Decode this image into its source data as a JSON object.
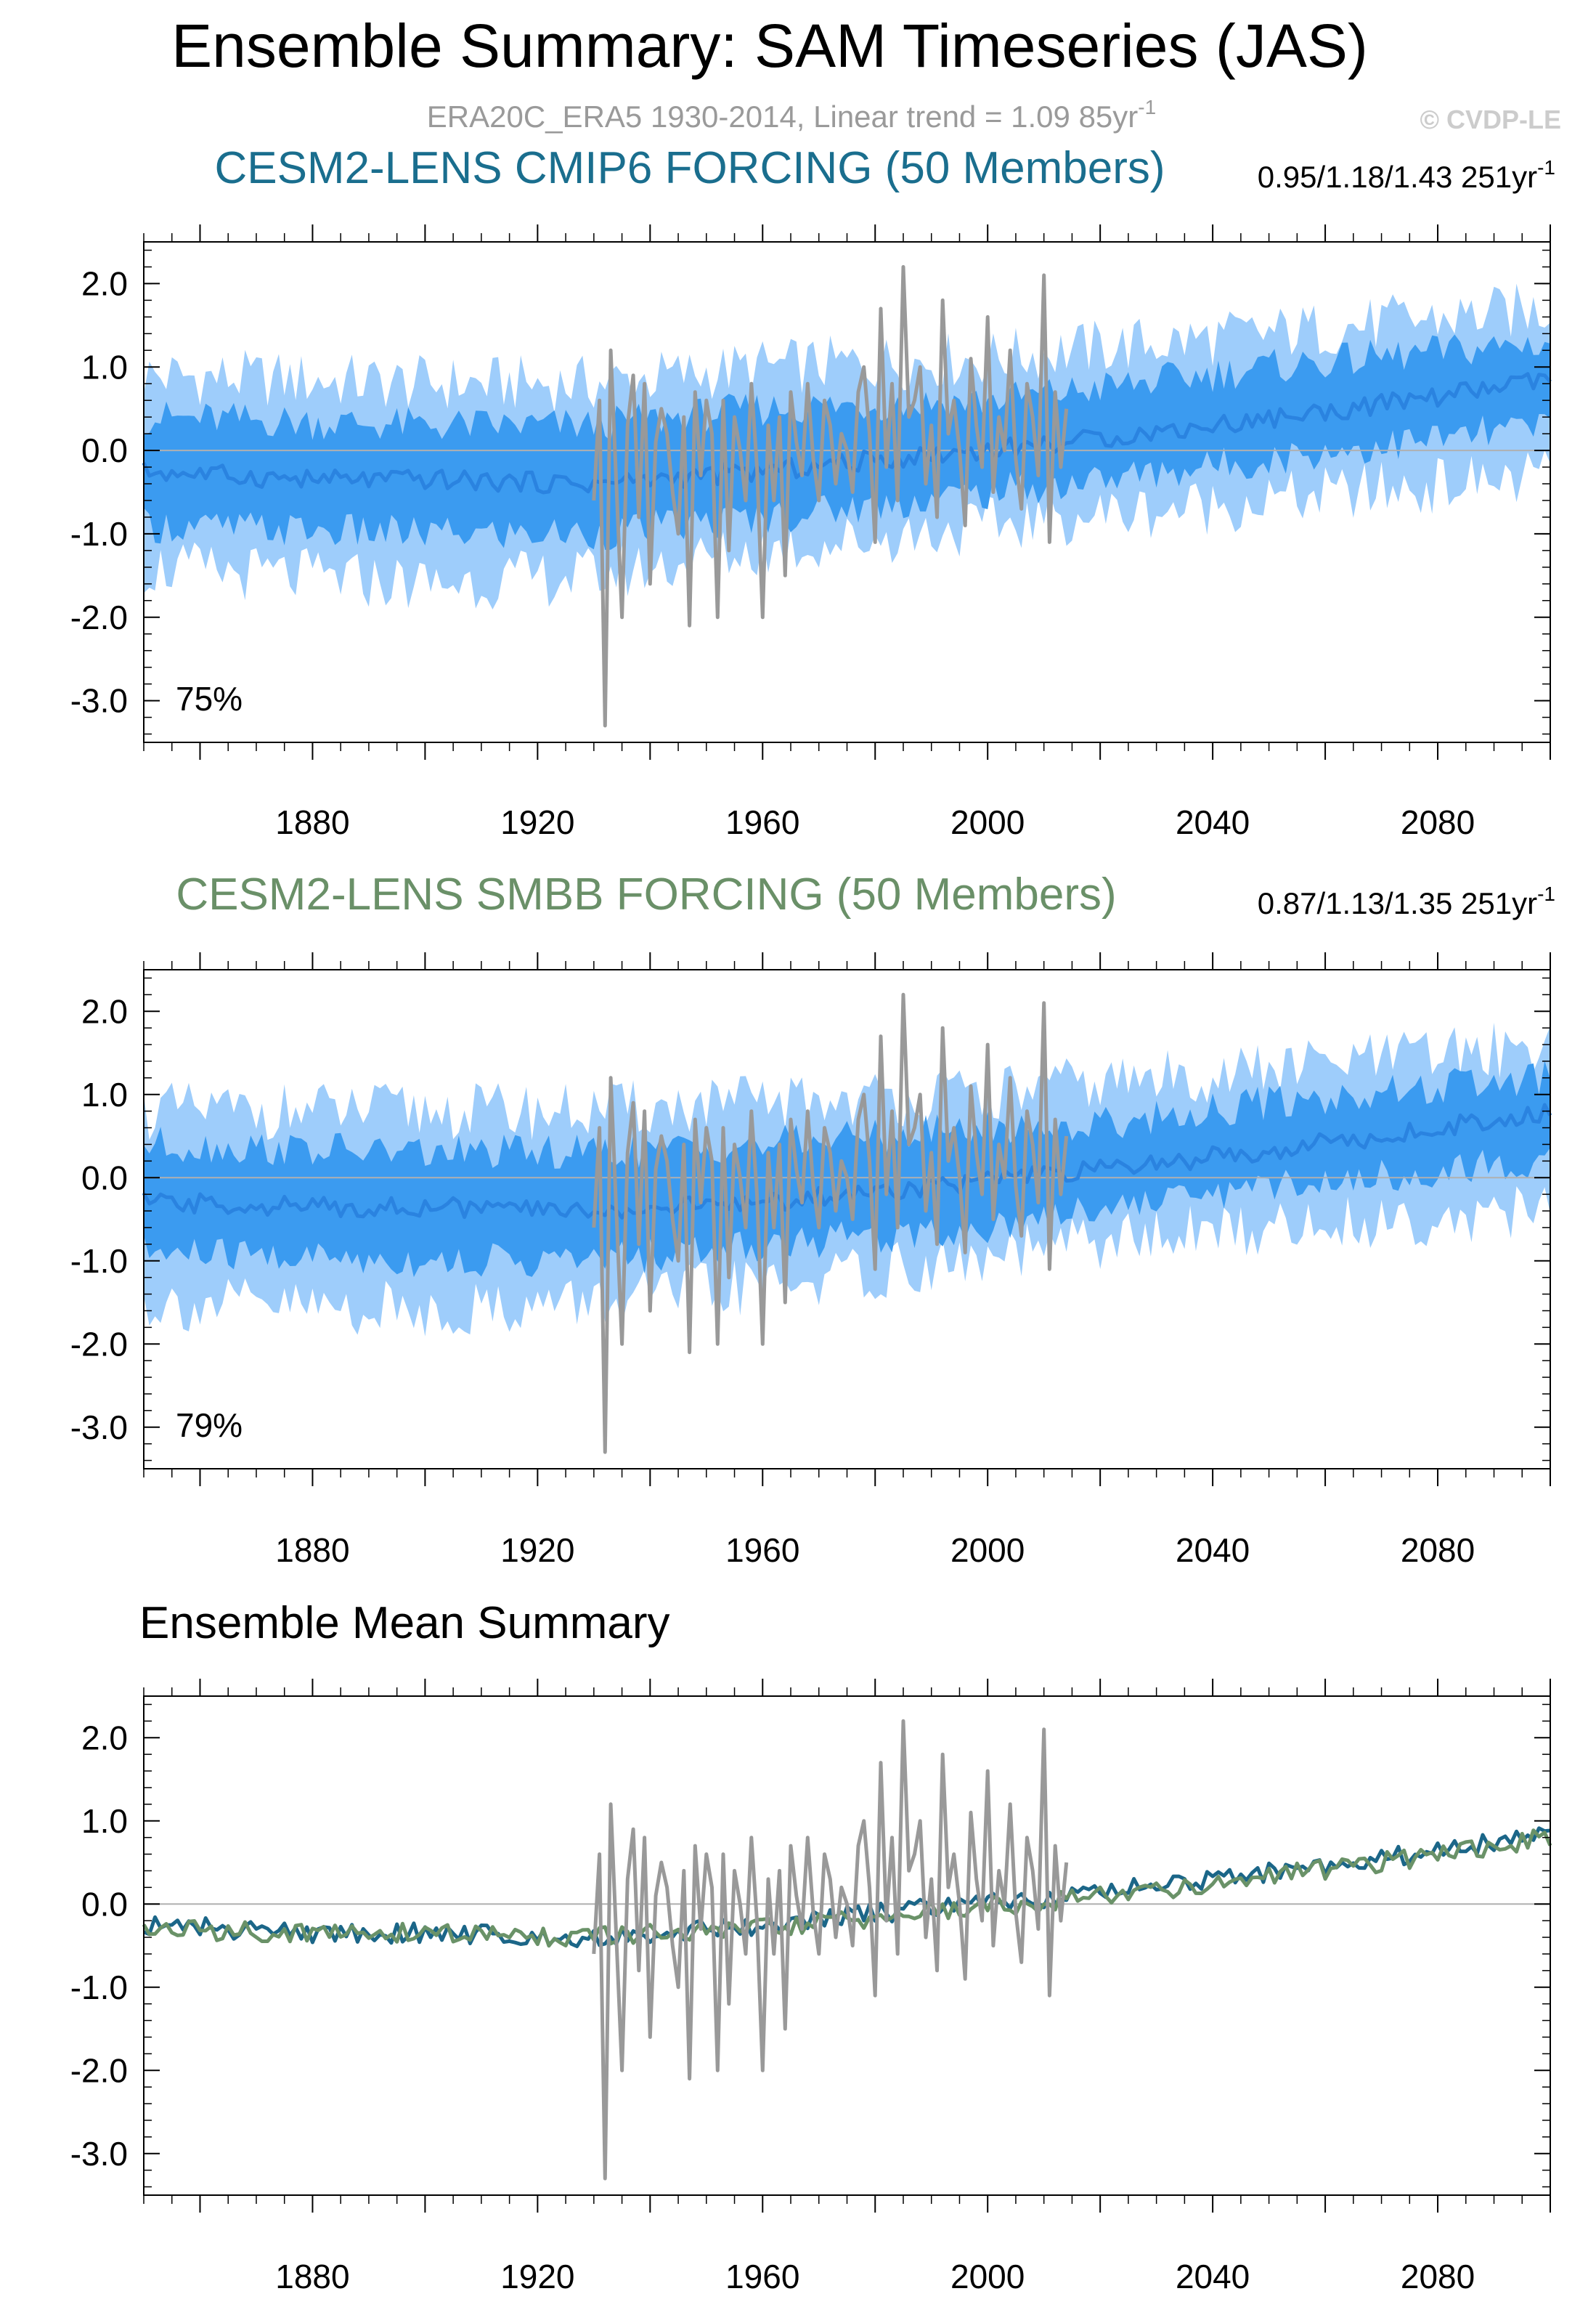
{
  "title": "Ensemble Summary: SAM Timeseries (JAS)",
  "subtitle": "ERA20C_ERA5 1930-2014, Linear trend = 1.09 85yr",
  "subtitle_sup": "-1",
  "copyright": "© CVDP-LE",
  "colors": {
    "outer_band": "#9ecdfb",
    "inner_band": "#3b9bf0",
    "ensemble_mean_line": "#2a83e0",
    "observations": "#999999",
    "cmip6_title": "#1a6e8e",
    "smbb_title": "#6a9068",
    "cmip6_mean_line": "#1b6688",
    "smbb_mean_line": "#6a9268",
    "zero_line": "#b0b0b0"
  },
  "chart_data": [
    {
      "type": "line",
      "panel_title": "CESM2-LENS CMIP6 FORCING (50 Members)",
      "trend_text": "0.95/1.18/1.43 251yr",
      "trend_sup": "-1",
      "annotation": "75%",
      "x_range": [
        1850,
        2100
      ],
      "ylim": [
        -3.5,
        2.5
      ],
      "yticks": [
        "2.0",
        "1.0",
        "0.0",
        "-1.0",
        "-2.0",
        "-3.0"
      ],
      "xticks": [
        "1880",
        "1920",
        "1960",
        "2000",
        "2040",
        "2080"
      ],
      "series": [
        {
          "role": "band",
          "level": "outer",
          "lower_anchors": [
            [
              1850,
              -1.4
            ],
            [
              1900,
              -1.6
            ],
            [
              1930,
              -1.5
            ],
            [
              1960,
              -1.2
            ],
            [
              2000,
              -0.9
            ],
            [
              2014,
              -0.8
            ],
            [
              2050,
              -0.6
            ],
            [
              2100,
              -0.3
            ]
          ],
          "upper_anchors": [
            [
              1850,
              0.9
            ],
            [
              1900,
              0.8
            ],
            [
              1930,
              0.8
            ],
            [
              1960,
              1.0
            ],
            [
              2000,
              1.1
            ],
            [
              2014,
              1.2
            ],
            [
              2050,
              1.4
            ],
            [
              2100,
              1.7
            ]
          ]
        },
        {
          "role": "band",
          "level": "inner",
          "lower_anchors": [
            [
              1850,
              -0.9
            ],
            [
              1900,
              -1.0
            ],
            [
              1930,
              -1.0
            ],
            [
              1960,
              -0.8
            ],
            [
              2000,
              -0.5
            ],
            [
              2014,
              -0.4
            ],
            [
              2050,
              -0.1
            ],
            [
              2100,
              0.3
            ]
          ],
          "upper_anchors": [
            [
              1850,
              0.4
            ],
            [
              1900,
              0.3
            ],
            [
              1930,
              0.3
            ],
            [
              1960,
              0.5
            ],
            [
              2000,
              0.6
            ],
            [
              2014,
              0.7
            ],
            [
              2050,
              1.0
            ],
            [
              2100,
              1.3
            ]
          ]
        },
        {
          "role": "ensemble_mean",
          "anchors": [
            [
              1850,
              -0.25
            ],
            [
              1880,
              -0.35
            ],
            [
              1900,
              -0.35
            ],
            [
              1930,
              -0.4
            ],
            [
              1960,
              -0.25
            ],
            [
              1990,
              -0.05
            ],
            [
              2014,
              0.1
            ],
            [
              2040,
              0.3
            ],
            [
              2070,
              0.55
            ],
            [
              2100,
              0.85
            ]
          ]
        }
      ],
      "observations": {
        "x": [
          1930,
          1931,
          1932,
          1933,
          1934,
          1935,
          1936,
          1937,
          1938,
          1939,
          1940,
          1941,
          1942,
          1943,
          1944,
          1945,
          1946,
          1947,
          1948,
          1949,
          1950,
          1951,
          1952,
          1953,
          1954,
          1955,
          1956,
          1957,
          1958,
          1959,
          1960,
          1961,
          1962,
          1963,
          1964,
          1965,
          1966,
          1967,
          1968,
          1969,
          1970,
          1971,
          1972,
          1973,
          1974,
          1975,
          1976,
          1977,
          1978,
          1979,
          1980,
          1981,
          1982,
          1983,
          1984,
          1985,
          1986,
          1987,
          1988,
          1989,
          1990,
          1991,
          1992,
          1993,
          1994,
          1995,
          1996,
          1997,
          1998,
          1999,
          2000,
          2001,
          2002,
          2003,
          2004,
          2005,
          2006,
          2007,
          2008,
          2009,
          2010,
          2011,
          2012,
          2013,
          2014
        ],
        "values": [
          -0.6,
          0.6,
          -3.3,
          1.2,
          -0.4,
          -2.0,
          0.3,
          0.9,
          -0.8,
          0.8,
          -1.6,
          0.1,
          0.5,
          0.2,
          -0.5,
          -1.0,
          0.4,
          -2.1,
          0.7,
          -0.3,
          0.6,
          0.2,
          -2.0,
          0.6,
          -1.2,
          0.4,
          0.0,
          -0.6,
          0.8,
          -0.2,
          -2.0,
          0.3,
          -0.6,
          0.4,
          -1.5,
          0.7,
          0.1,
          -0.3,
          0.8,
          -0.1,
          -0.6,
          0.6,
          0.3,
          -0.4,
          0.2,
          0.0,
          -0.5,
          0.7,
          1.0,
          0.2,
          -1.1,
          1.7,
          -0.2,
          0.8,
          -0.6,
          2.2,
          0.4,
          0.6,
          1.0,
          -0.4,
          0.3,
          -0.8,
          1.8,
          0.2,
          0.6,
          0.0,
          -0.9,
          1.1,
          0.3,
          -0.2,
          1.6,
          -0.5,
          0.4,
          0.0,
          1.2,
          -0.1,
          -0.7,
          0.8,
          0.4,
          -0.3,
          2.1,
          -1.1,
          0.7,
          -0.2,
          0.5
        ]
      }
    },
    {
      "type": "line",
      "panel_title": "CESM2-LENS SMBB FORCING (50 Members)",
      "trend_text": "0.87/1.13/1.35 251yr",
      "trend_sup": "-1",
      "annotation": "79%",
      "x_range": [
        1850,
        2100
      ],
      "ylim": [
        -3.5,
        2.5
      ],
      "yticks": [
        "2.0",
        "1.0",
        "0.0",
        "-1.0",
        "-2.0",
        "-3.0"
      ],
      "xticks": [
        "1880",
        "1920",
        "1960",
        "2000",
        "2040",
        "2080"
      ],
      "series": [
        {
          "role": "band",
          "level": "outer",
          "lower_anchors": [
            [
              1850,
              -1.5
            ],
            [
              1900,
              -1.6
            ],
            [
              1930,
              -1.5
            ],
            [
              1960,
              -1.3
            ],
            [
              2000,
              -1.0
            ],
            [
              2014,
              -0.8
            ],
            [
              2050,
              -0.6
            ],
            [
              2100,
              -0.4
            ]
          ],
          "upper_anchors": [
            [
              1850,
              0.8
            ],
            [
              1900,
              0.8
            ],
            [
              1930,
              0.8
            ],
            [
              1960,
              0.9
            ],
            [
              2000,
              1.0
            ],
            [
              2014,
              1.1
            ],
            [
              2050,
              1.3
            ],
            [
              2100,
              1.6
            ]
          ]
        },
        {
          "role": "band",
          "level": "inner",
          "lower_anchors": [
            [
              1850,
              -0.9
            ],
            [
              1900,
              -1.0
            ],
            [
              1930,
              -1.0
            ],
            [
              1960,
              -0.8
            ],
            [
              2000,
              -0.6
            ],
            [
              2014,
              -0.4
            ],
            [
              2050,
              -0.1
            ],
            [
              2100,
              0.2
            ]
          ],
          "upper_anchors": [
            [
              1850,
              0.4
            ],
            [
              1900,
              0.3
            ],
            [
              1930,
              0.3
            ],
            [
              1960,
              0.4
            ],
            [
              2000,
              0.6
            ],
            [
              2014,
              0.6
            ],
            [
              2050,
              0.9
            ],
            [
              2100,
              1.2
            ]
          ]
        },
        {
          "role": "ensemble_mean",
          "anchors": [
            [
              1850,
              -0.3
            ],
            [
              1880,
              -0.35
            ],
            [
              1900,
              -0.35
            ],
            [
              1930,
              -0.4
            ],
            [
              1960,
              -0.3
            ],
            [
              1990,
              -0.1
            ],
            [
              2014,
              0.05
            ],
            [
              2040,
              0.25
            ],
            [
              2070,
              0.5
            ],
            [
              2100,
              0.8
            ]
          ]
        }
      ],
      "observations": {
        "x": [
          1930,
          1931,
          1932,
          1933,
          1934,
          1935,
          1936,
          1937,
          1938,
          1939,
          1940,
          1941,
          1942,
          1943,
          1944,
          1945,
          1946,
          1947,
          1948,
          1949,
          1950,
          1951,
          1952,
          1953,
          1954,
          1955,
          1956,
          1957,
          1958,
          1959,
          1960,
          1961,
          1962,
          1963,
          1964,
          1965,
          1966,
          1967,
          1968,
          1969,
          1970,
          1971,
          1972,
          1973,
          1974,
          1975,
          1976,
          1977,
          1978,
          1979,
          1980,
          1981,
          1982,
          1983,
          1984,
          1985,
          1986,
          1987,
          1988,
          1989,
          1990,
          1991,
          1992,
          1993,
          1994,
          1995,
          1996,
          1997,
          1998,
          1999,
          2000,
          2001,
          2002,
          2003,
          2004,
          2005,
          2006,
          2007,
          2008,
          2009,
          2010,
          2011,
          2012,
          2013,
          2014
        ],
        "values": [
          -0.6,
          0.6,
          -3.3,
          1.2,
          -0.4,
          -2.0,
          0.3,
          0.9,
          -0.8,
          0.8,
          -1.6,
          0.1,
          0.5,
          0.2,
          -0.5,
          -1.0,
          0.4,
          -2.1,
          0.7,
          -0.3,
          0.6,
          0.2,
          -2.0,
          0.6,
          -1.2,
          0.4,
          0.0,
          -0.6,
          0.8,
          -0.2,
          -2.0,
          0.3,
          -0.6,
          0.4,
          -1.5,
          0.7,
          0.1,
          -0.3,
          0.8,
          -0.1,
          -0.6,
          0.6,
          0.3,
          -0.4,
          0.2,
          0.0,
          -0.5,
          0.7,
          1.0,
          0.2,
          -1.1,
          1.7,
          -0.2,
          0.8,
          -0.6,
          2.2,
          0.4,
          0.6,
          1.0,
          -0.4,
          0.3,
          -0.8,
          1.8,
          0.2,
          0.6,
          0.0,
          -0.9,
          1.1,
          0.3,
          -0.2,
          1.6,
          -0.5,
          0.4,
          0.0,
          1.2,
          -0.1,
          -0.7,
          0.8,
          0.4,
          -0.3,
          2.1,
          -1.1,
          0.7,
          -0.2,
          0.5
        ]
      }
    },
    {
      "type": "line",
      "panel_title": "Ensemble Mean Summary",
      "x_range": [
        1850,
        2100
      ],
      "ylim": [
        -3.5,
        2.5
      ],
      "yticks": [
        "2.0",
        "1.0",
        "0.0",
        "-1.0",
        "-2.0",
        "-3.0"
      ],
      "xticks": [
        "1880",
        "1920",
        "1960",
        "2000",
        "2040",
        "2080"
      ],
      "series": [
        {
          "role": "cmip6_mean",
          "anchors": [
            [
              1850,
              -0.25
            ],
            [
              1880,
              -0.35
            ],
            [
              1900,
              -0.35
            ],
            [
              1930,
              -0.4
            ],
            [
              1960,
              -0.25
            ],
            [
              1990,
              -0.05
            ],
            [
              2014,
              0.1
            ],
            [
              2040,
              0.3
            ],
            [
              2070,
              0.55
            ],
            [
              2100,
              0.85
            ]
          ]
        },
        {
          "role": "smbb_mean",
          "anchors": [
            [
              1850,
              -0.3
            ],
            [
              1880,
              -0.35
            ],
            [
              1900,
              -0.35
            ],
            [
              1930,
              -0.4
            ],
            [
              1960,
              -0.3
            ],
            [
              1990,
              -0.1
            ],
            [
              2014,
              0.05
            ],
            [
              2040,
              0.25
            ],
            [
              2070,
              0.5
            ],
            [
              2100,
              0.8
            ]
          ]
        }
      ],
      "observations": {
        "x": [
          1930,
          1931,
          1932,
          1933,
          1934,
          1935,
          1936,
          1937,
          1938,
          1939,
          1940,
          1941,
          1942,
          1943,
          1944,
          1945,
          1946,
          1947,
          1948,
          1949,
          1950,
          1951,
          1952,
          1953,
          1954,
          1955,
          1956,
          1957,
          1958,
          1959,
          1960,
          1961,
          1962,
          1963,
          1964,
          1965,
          1966,
          1967,
          1968,
          1969,
          1970,
          1971,
          1972,
          1973,
          1974,
          1975,
          1976,
          1977,
          1978,
          1979,
          1980,
          1981,
          1982,
          1983,
          1984,
          1985,
          1986,
          1987,
          1988,
          1989,
          1990,
          1991,
          1992,
          1993,
          1994,
          1995,
          1996,
          1997,
          1998,
          1999,
          2000,
          2001,
          2002,
          2003,
          2004,
          2005,
          2006,
          2007,
          2008,
          2009,
          2010,
          2011,
          2012,
          2013,
          2014
        ],
        "values": [
          -0.6,
          0.6,
          -3.3,
          1.2,
          -0.4,
          -2.0,
          0.3,
          0.9,
          -0.8,
          0.8,
          -1.6,
          0.1,
          0.5,
          0.2,
          -0.5,
          -1.0,
          0.4,
          -2.1,
          0.7,
          -0.3,
          0.6,
          0.2,
          -2.0,
          0.6,
          -1.2,
          0.4,
          0.0,
          -0.6,
          0.8,
          -0.2,
          -2.0,
          0.3,
          -0.6,
          0.4,
          -1.5,
          0.7,
          0.1,
          -0.3,
          0.8,
          -0.1,
          -0.6,
          0.6,
          0.3,
          -0.4,
          0.2,
          0.0,
          -0.5,
          0.7,
          1.0,
          0.2,
          -1.1,
          1.7,
          -0.2,
          0.8,
          -0.6,
          2.2,
          0.4,
          0.6,
          1.0,
          -0.4,
          0.3,
          -0.8,
          1.8,
          0.2,
          0.6,
          0.0,
          -0.9,
          1.1,
          0.3,
          -0.2,
          1.6,
          -0.5,
          0.4,
          0.0,
          1.2,
          -0.1,
          -0.7,
          0.8,
          0.4,
          -0.3,
          2.1,
          -1.1,
          0.7,
          -0.2,
          0.5
        ]
      }
    }
  ]
}
